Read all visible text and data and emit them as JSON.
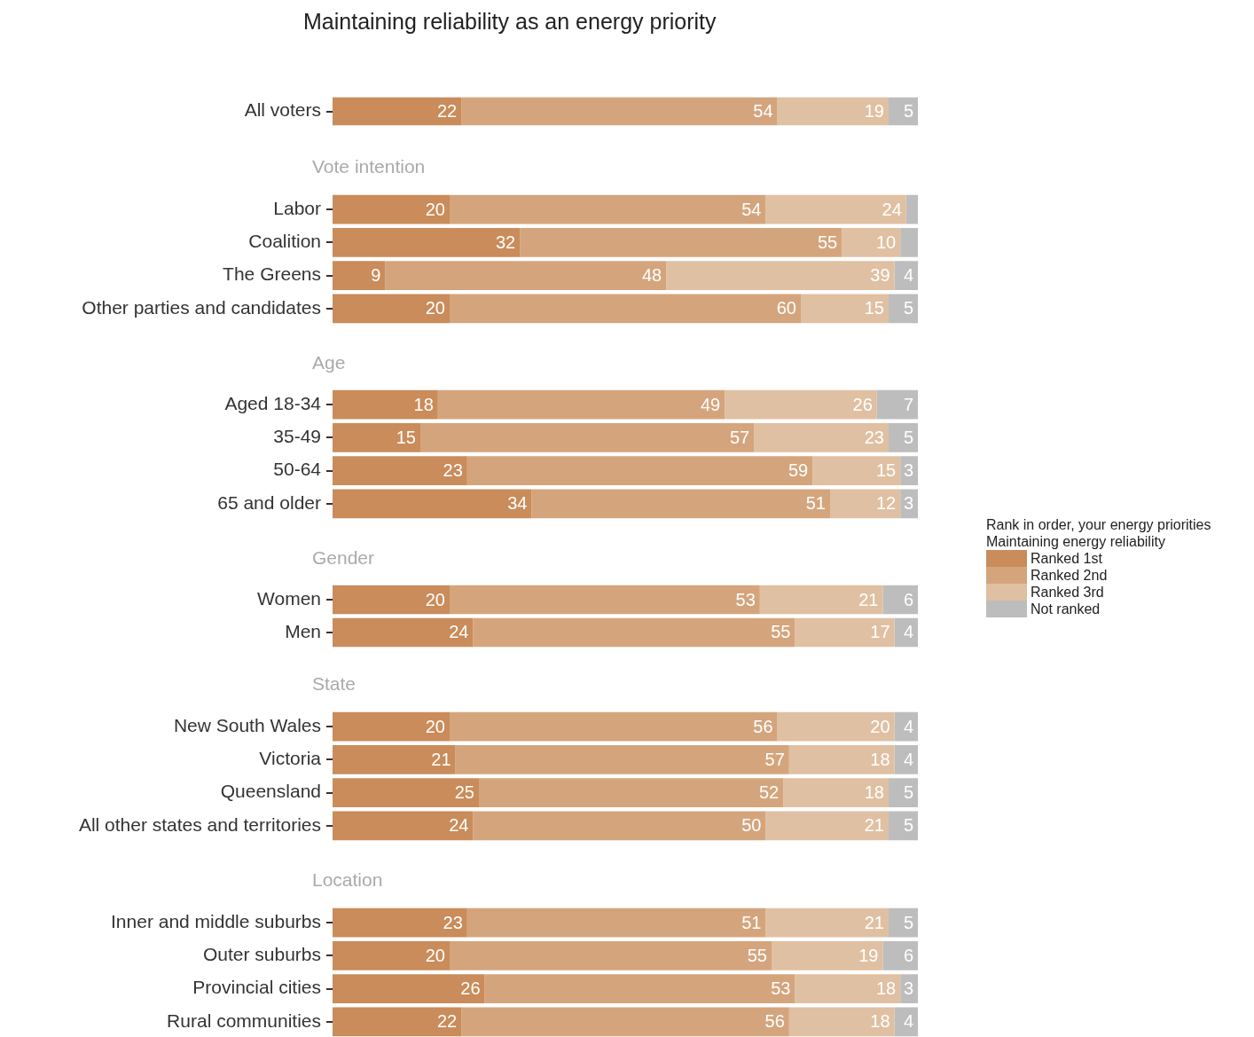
{
  "chart_data": [
    {
      "type": "bar",
      "orientation": "horizontal",
      "stacked": true,
      "title": "Maintaining reliability as an energy priority",
      "categories": [
        "All voters"
      ],
      "xlim": [
        0,
        100
      ],
      "tick_labels": "y",
      "data_labels": true,
      "series": [
        {
          "color": "#c98c5a",
          "values": [
            22
          ]
        },
        {
          "color": "#d4a57d",
          "values": [
            54
          ]
        },
        {
          "color": "#e0c0a2",
          "values": [
            19
          ]
        },
        {
          "color": "#bdbdbd",
          "values": [
            5
          ]
        }
      ]
    },
    {
      "type": "bar",
      "orientation": "horizontal",
      "stacked": true,
      "title": "Vote intention",
      "categories": [
        "Labor",
        "Coalition",
        "The Greens",
        "Other parties and candidates"
      ],
      "xlim": [
        0,
        100
      ],
      "tick_labels": "y",
      "series": [
        {
          "color": "#c98c5a",
          "values": [
            20,
            32,
            9,
            20
          ],
          "value_labels": [
            "20",
            "32",
            "9",
            "20"
          ]
        },
        {
          "color": "#d4a57d",
          "values": [
            54,
            55,
            48,
            60
          ],
          "value_labels": [
            "54",
            "55",
            "48",
            "60"
          ]
        },
        {
          "color": "#e0c0a2",
          "values": [
            24,
            10,
            39,
            15
          ],
          "value_labels": [
            "24",
            "10",
            "39",
            "15"
          ]
        },
        {
          "color": "#bdbdbd",
          "values": [
            2,
            3,
            4,
            5
          ],
          "value_labels": [
            null,
            null,
            "4",
            "5"
          ]
        }
      ]
    },
    {
      "type": "bar",
      "orientation": "horizontal",
      "stacked": true,
      "title": "Age",
      "categories": [
        "Aged 18-34",
        "35-49",
        "50-64",
        "65 and older"
      ],
      "xlim": [
        0,
        100
      ],
      "tick_labels": "y",
      "data_labels": true,
      "legend": "right",
      "legend_title": "Rank in order, your energy priorities\nMaintaining energy reliability",
      "series": [
        {
          "name": "Ranked 1st",
          "color": "#c98c5a",
          "values": [
            18,
            15,
            23,
            34
          ]
        },
        {
          "name": "Ranked 2nd",
          "color": "#d4a57d",
          "values": [
            49,
            57,
            59,
            51
          ]
        },
        {
          "name": "Ranked 3rd",
          "color": "#e0c0a2",
          "values": [
            26,
            23,
            15,
            12
          ]
        },
        {
          "name": "Not ranked",
          "color": "#bdbdbd",
          "values": [
            7,
            5,
            3,
            3
          ]
        }
      ]
    },
    {
      "type": "bar",
      "orientation": "horizontal",
      "stacked": true,
      "title": "Gender",
      "categories": [
        "Women",
        "Men"
      ],
      "xlim": [
        0,
        100
      ],
      "tick_labels": "y",
      "data_labels": true,
      "series": [
        {
          "color": "#c98c5a",
          "values": [
            20,
            24
          ]
        },
        {
          "color": "#d4a57d",
          "values": [
            53,
            55
          ]
        },
        {
          "color": "#e0c0a2",
          "values": [
            21,
            17
          ]
        },
        {
          "color": "#bdbdbd",
          "values": [
            6,
            4
          ]
        }
      ]
    },
    {
      "type": "bar",
      "orientation": "horizontal",
      "stacked": true,
      "title": "State",
      "categories": [
        "New South Wales",
        "Victoria",
        "Queensland",
        "All other states and territories"
      ],
      "xlim": [
        0,
        100
      ],
      "tick_labels": "y",
      "data_labels": true,
      "series": [
        {
          "color": "#c98c5a",
          "values": [
            20,
            21,
            25,
            24
          ]
        },
        {
          "color": "#d4a57d",
          "values": [
            56,
            57,
            52,
            50
          ]
        },
        {
          "color": "#e0c0a2",
          "values": [
            20,
            18,
            18,
            21
          ]
        },
        {
          "color": "#bdbdbd",
          "values": [
            4,
            4,
            5,
            5
          ]
        }
      ]
    },
    {
      "type": "bar",
      "orientation": "horizontal",
      "stacked": true,
      "title": "Location",
      "categories": [
        "Inner and middle suburbs",
        "Outer suburbs",
        "Provincial cities",
        "Rural communities"
      ],
      "xlim": [
        0,
        100
      ],
      "tick_labels": "y",
      "data_labels": true,
      "series": [
        {
          "color": "#c98c5a",
          "values": [
            23,
            20,
            26,
            22
          ]
        },
        {
          "color": "#d4a57d",
          "values": [
            51,
            55,
            53,
            56
          ]
        },
        {
          "color": "#e0c0a2",
          "values": [
            21,
            19,
            18,
            18
          ]
        },
        {
          "color": "#bdbdbd",
          "values": [
            5,
            6,
            3,
            4
          ]
        }
      ]
    }
  ]
}
